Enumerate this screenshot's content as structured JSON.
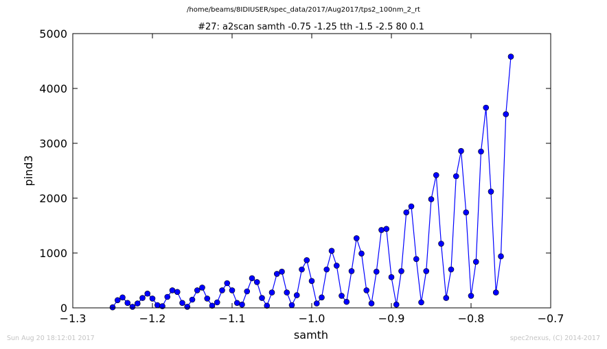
{
  "header": {
    "file_path": "/home/beams/8IDIUSER/spec_data/2017/Aug2017/tps2_100nm_2_rt"
  },
  "footer": {
    "timestamp": "Sun Aug 20 18:12:01 2017",
    "credit": "spec2nexus, (C) 2014-2017"
  },
  "chart_data": {
    "type": "line",
    "title": "#27: a2scan  samth -0.75 -1.25  tth -1.5 -2.5  80 0.1",
    "xlabel": "samth",
    "ylabel": "pind3",
    "xlim": [
      -1.3,
      -0.7
    ],
    "ylim": [
      0,
      5000
    ],
    "xticks": [
      -1.3,
      -1.2,
      -1.1,
      -1.0,
      -0.9,
      -0.8,
      -0.7
    ],
    "xtick_labels": [
      "−1.3",
      "−1.2",
      "−1.1",
      "−1.0",
      "−0.9",
      "−0.8",
      "−0.7"
    ],
    "yticks": [
      0,
      1000,
      2000,
      3000,
      4000,
      5000
    ],
    "ytick_labels": [
      "0",
      "1000",
      "2000",
      "3000",
      "4000",
      "5000"
    ],
    "grid": false,
    "marker": "circle",
    "color": "#0000ff",
    "series": [
      {
        "x": [
          -1.25,
          -1.24375,
          -1.2375,
          -1.23125,
          -1.225,
          -1.21875,
          -1.2125,
          -1.20625,
          -1.2,
          -1.19375,
          -1.1875,
          -1.18125,
          -1.175,
          -1.16875,
          -1.1625,
          -1.15625,
          -1.15,
          -1.14375,
          -1.1375,
          -1.13125,
          -1.125,
          -1.11875,
          -1.1125,
          -1.10625,
          -1.1,
          -1.09375,
          -1.0875,
          -1.08125,
          -1.075,
          -1.06875,
          -1.0625,
          -1.05625,
          -1.05,
          -1.04375,
          -1.0375,
          -1.03125,
          -1.025,
          -1.01875,
          -1.0125,
          -1.00625,
          -1.0,
          -0.99375,
          -0.9875,
          -0.98125,
          -0.975,
          -0.96875,
          -0.9625,
          -0.95625,
          -0.95,
          -0.94375,
          -0.9375,
          -0.93125,
          -0.925,
          -0.91875,
          -0.9125,
          -0.90625,
          -0.9,
          -0.89375,
          -0.8875,
          -0.88125,
          -0.875,
          -0.86875,
          -0.8625,
          -0.85625,
          -0.85,
          -0.84375,
          -0.8375,
          -0.83125,
          -0.825,
          -0.81875,
          -0.8125,
          -0.80625,
          -0.8,
          -0.79375,
          -0.7875,
          -0.78125,
          -0.775,
          -0.76875,
          -0.7625,
          -0.75625,
          -0.75
        ],
        "y": [
          10,
          140,
          190,
          90,
          20,
          80,
          180,
          260,
          170,
          50,
          30,
          200,
          320,
          290,
          90,
          20,
          150,
          320,
          370,
          170,
          40,
          100,
          320,
          450,
          320,
          90,
          60,
          300,
          540,
          470,
          180,
          40,
          280,
          620,
          660,
          280,
          50,
          230,
          700,
          870,
          490,
          80,
          190,
          700,
          1040,
          770,
          220,
          110,
          670,
          1270,
          990,
          320,
          80,
          660,
          1420,
          1440,
          560,
          60,
          670,
          1740,
          1850,
          890,
          100,
          670,
          1980,
          2420,
          1170,
          180,
          700,
          2400,
          2860,
          1740,
          220,
          840,
          2850,
          3650,
          2120,
          280,
          940,
          3530,
          4580
        ]
      }
    ]
  }
}
